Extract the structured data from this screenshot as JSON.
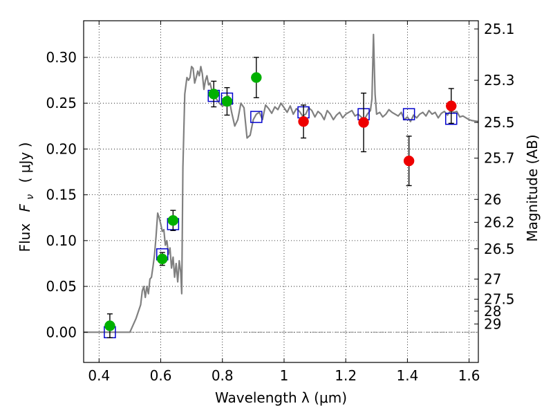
{
  "chart_data": {
    "type": "scatter",
    "xlabel": "Wavelength  λ (μm)",
    "ylabel_text": "Flux",
    "ylabel_symbol": "F",
    "ylabel_subscript": "ν",
    "ylabel_unit": "( μJy )",
    "ylabel_right": "Magnitude (AB)",
    "xlim": [
      0.35,
      1.63
    ],
    "ylim": [
      -0.033,
      0.34
    ],
    "grid": true,
    "grid_style": "dotted",
    "x_ticks": [
      0.4,
      0.6,
      0.8,
      1.0,
      1.2,
      1.4,
      1.6
    ],
    "x_tick_labels": [
      "0.4",
      "0.6",
      "0.8",
      "1",
      "1.2",
      "1.4",
      "1.6"
    ],
    "y_ticks": [
      0.0,
      0.05,
      0.1,
      0.15,
      0.2,
      0.25,
      0.3
    ],
    "y_tick_labels": [
      "0.00",
      "0.05",
      "0.10",
      "0.15",
      "0.20",
      "0.25",
      "0.30"
    ],
    "right_axis_ticks": [
      {
        "label": "25.1",
        "flux": 0.331
      },
      {
        "label": "25.3",
        "flux": 0.275
      },
      {
        "label": "25.5",
        "flux": 0.229
      },
      {
        "label": "25.7",
        "flux": 0.19
      },
      {
        "label": "26",
        "flux": 0.145
      },
      {
        "label": "26.2",
        "flux": 0.12
      },
      {
        "label": "26.5",
        "flux": 0.091
      },
      {
        "label": "27",
        "flux": 0.058
      },
      {
        "label": "27.5",
        "flux": 0.036
      },
      {
        "label": "28",
        "flux": 0.023
      },
      {
        "label": "29",
        "flux": 0.009
      }
    ],
    "zero_line": 0.0,
    "colors": {
      "model_spectrum": "#808080",
      "model_photometry": "#0000cc",
      "green_points": "#00b000",
      "red_points": "#ee0000",
      "error_bars": "#000000",
      "zero_line": "#888888"
    },
    "series": [
      {
        "kind": "line",
        "color": "#808080",
        "x": [
          0.35,
          0.5,
          0.52,
          0.535,
          0.54,
          0.545,
          0.55,
          0.555,
          0.56,
          0.565,
          0.57,
          0.575,
          0.58,
          0.585,
          0.59,
          0.595,
          0.6,
          0.605,
          0.61,
          0.615,
          0.62,
          0.625,
          0.63,
          0.635,
          0.64,
          0.645,
          0.65,
          0.655,
          0.66,
          0.665,
          0.668,
          0.672,
          0.678,
          0.685,
          0.69,
          0.695,
          0.7,
          0.705,
          0.71,
          0.715,
          0.72,
          0.725,
          0.73,
          0.735,
          0.74,
          0.745,
          0.75,
          0.755,
          0.76,
          0.765,
          0.77,
          0.78,
          0.79,
          0.8,
          0.81,
          0.82,
          0.83,
          0.84,
          0.85,
          0.86,
          0.87,
          0.88,
          0.89,
          0.9,
          0.91,
          0.92,
          0.93,
          0.94,
          0.95,
          0.96,
          0.97,
          0.98,
          0.99,
          1.0,
          1.01,
          1.02,
          1.03,
          1.04,
          1.05,
          1.06,
          1.07,
          1.08,
          1.09,
          1.1,
          1.11,
          1.12,
          1.13,
          1.14,
          1.15,
          1.16,
          1.17,
          1.18,
          1.19,
          1.2,
          1.21,
          1.22,
          1.23,
          1.24,
          1.25,
          1.26,
          1.27,
          1.28,
          1.285,
          1.29,
          1.295,
          1.3,
          1.31,
          1.32,
          1.33,
          1.34,
          1.35,
          1.36,
          1.37,
          1.38,
          1.39,
          1.4,
          1.41,
          1.42,
          1.43,
          1.44,
          1.45,
          1.46,
          1.47,
          1.48,
          1.49,
          1.5,
          1.51,
          1.52,
          1.53,
          1.54,
          1.55,
          1.56,
          1.57,
          1.58,
          1.59,
          1.6,
          1.61,
          1.63
        ],
        "y": [
          0.0,
          0.0,
          0.015,
          0.03,
          0.045,
          0.05,
          0.038,
          0.05,
          0.042,
          0.058,
          0.06,
          0.072,
          0.085,
          0.105,
          0.13,
          0.125,
          0.118,
          0.11,
          0.112,
          0.095,
          0.1,
          0.085,
          0.092,
          0.07,
          0.082,
          0.06,
          0.075,
          0.055,
          0.078,
          0.065,
          0.042,
          0.18,
          0.26,
          0.278,
          0.275,
          0.278,
          0.29,
          0.288,
          0.272,
          0.278,
          0.285,
          0.28,
          0.29,
          0.282,
          0.265,
          0.275,
          0.28,
          0.27,
          0.272,
          0.265,
          0.262,
          0.255,
          0.25,
          0.247,
          0.248,
          0.258,
          0.24,
          0.225,
          0.232,
          0.25,
          0.245,
          0.212,
          0.215,
          0.232,
          0.238,
          0.24,
          0.232,
          0.248,
          0.244,
          0.239,
          0.246,
          0.243,
          0.25,
          0.245,
          0.24,
          0.247,
          0.238,
          0.244,
          0.241,
          0.236,
          0.238,
          0.245,
          0.242,
          0.235,
          0.241,
          0.238,
          0.232,
          0.242,
          0.238,
          0.232,
          0.237,
          0.24,
          0.234,
          0.238,
          0.24,
          0.242,
          0.236,
          0.238,
          0.235,
          0.232,
          0.238,
          0.242,
          0.255,
          0.325,
          0.26,
          0.238,
          0.24,
          0.235,
          0.238,
          0.243,
          0.24,
          0.238,
          0.236,
          0.24,
          0.232,
          0.235,
          0.23,
          0.237,
          0.234,
          0.238,
          0.24,
          0.236,
          0.242,
          0.238,
          0.24,
          0.234,
          0.239,
          0.241,
          0.237,
          0.242,
          0.24,
          0.241,
          0.235,
          0.236,
          0.234,
          0.232,
          0.231,
          0.23
        ]
      },
      {
        "kind": "open-square",
        "color": "#0000cc",
        "x": [
          0.435,
          0.605,
          0.64,
          0.772,
          0.815,
          0.91,
          1.063,
          1.258,
          1.405,
          1.542
        ],
        "y": [
          0.0,
          0.085,
          0.118,
          0.258,
          0.255,
          0.235,
          0.24,
          0.238,
          0.238,
          0.233
        ]
      },
      {
        "kind": "filled-circle",
        "color": "#00b000",
        "x": [
          0.435,
          0.605,
          0.64,
          0.772,
          0.815,
          0.91
        ],
        "y": [
          0.007,
          0.08,
          0.122,
          0.26,
          0.252,
          0.278
        ],
        "yerr": [
          0.013,
          0.007,
          0.011,
          0.014,
          0.015,
          0.022
        ]
      },
      {
        "kind": "filled-circle",
        "color": "#ee0000",
        "x": [
          1.063,
          1.258,
          1.405,
          1.542
        ],
        "y": [
          0.23,
          0.229,
          0.187,
          0.247
        ],
        "yerr": [
          0.018,
          0.032,
          0.027,
          0.019
        ]
      }
    ]
  }
}
